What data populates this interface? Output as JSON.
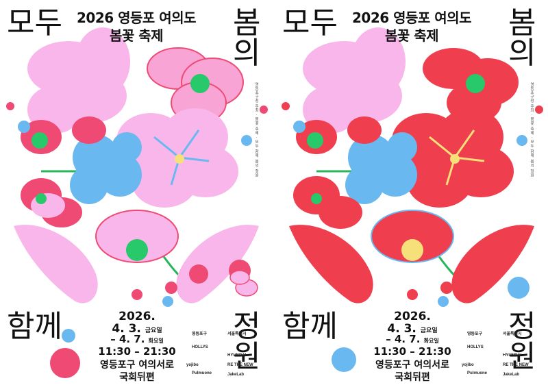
{
  "posters": [
    {
      "id": "pink",
      "petal_color": "#f9b6ea",
      "accent_color": "#ee4a74",
      "center_color": "#27c96a",
      "blue_color": "#6ab8f0"
    },
    {
      "id": "red",
      "petal_color": "#ef3f4f",
      "accent_color": "#ef3f4f",
      "center_color": "#f6e07a",
      "blue_color": "#6ab8f0"
    }
  ],
  "title_line1": "2026 영등포 여의도",
  "title_line2": "봄꽃 축제",
  "brush": {
    "tl": "모두",
    "tr": "봄의",
    "bl": "함께",
    "br": "정원"
  },
  "date_start": "2026.",
  "date_day1": "4. 3.",
  "date_day1_dow": "금요일",
  "date_end": "– 4. 7.",
  "date_end_dow": "화요일",
  "time": "11:30 – 21:30",
  "place_line1": "영등포구 여의서로",
  "place_line2": "국회뒤편",
  "vertical_subtitle": "영등포구청 주최 · 봄꽃 축제 · 모두 함께 봄의 정원",
  "sponsors": {
    "s1": "영등포구",
    "s2": "서울특별시",
    "s3": "HOLLYS",
    "s4": "HYUNDAI",
    "s5": "yojibo",
    "s6": "Pulmuone",
    "s7": "RE THE NEW",
    "s8": "JakeLab"
  }
}
